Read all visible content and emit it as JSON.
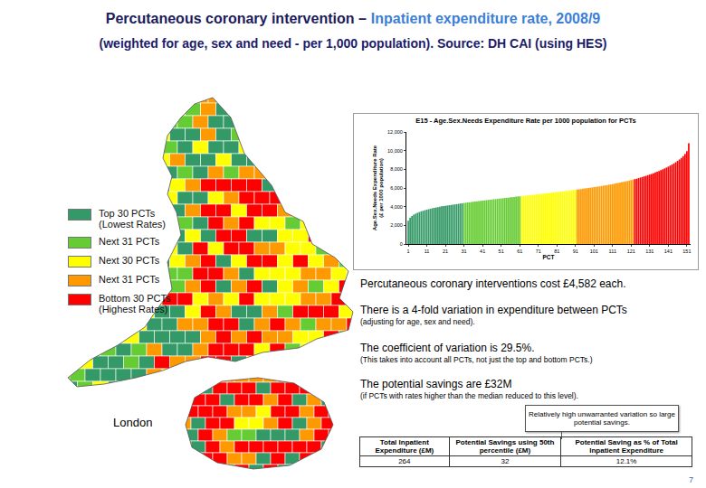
{
  "header": {
    "title": "Percutaneous coronary intervention –",
    "title_highlight": "Inpatient expenditure rate, 2008/9",
    "subtitle": "(weighted for age, sex and need - per 1,000 population). Source: DH CAI (using HES)"
  },
  "map_legend": [
    {
      "lines": [
        "Top 30 PCTs",
        "(Lowest Rates)"
      ],
      "color": "#339966"
    },
    {
      "lines": [
        "Next 31 PCTs"
      ],
      "color": "#66cc33"
    },
    {
      "lines": [
        "Next 30 PCTs"
      ],
      "color": "#ffff00"
    },
    {
      "lines": [
        "Next 31 PCTs"
      ],
      "color": "#ff9900"
    },
    {
      "lines": [
        "Bottom 30 PCTs",
        "(Highest Rates)"
      ],
      "color": "#ff0000"
    }
  ],
  "inset_label": "London",
  "chart_data": {
    "type": "bar",
    "title": "E15 - Age.Sex.Needs Expenditure Rate per 1000 population for PCTs",
    "xlabel": "PCT",
    "ylabel": "Age.Sex.Needs Expenditure Rate (£ per 1000 population)",
    "x": [
      1,
      2,
      3,
      4,
      5,
      6,
      7,
      8,
      9,
      10,
      11,
      12,
      13,
      14,
      15,
      16,
      17,
      18,
      19,
      20,
      21,
      22,
      23,
      24,
      25,
      26,
      27,
      28,
      29,
      30,
      31,
      32,
      33,
      34,
      35,
      36,
      37,
      38,
      39,
      40,
      41,
      42,
      43,
      44,
      45,
      46,
      47,
      48,
      49,
      50,
      51,
      52,
      53,
      54,
      55,
      56,
      57,
      58,
      59,
      60,
      61,
      62,
      63,
      64,
      65,
      66,
      67,
      68,
      69,
      70,
      71,
      72,
      73,
      74,
      75,
      76,
      77,
      78,
      79,
      80,
      81,
      82,
      83,
      84,
      85,
      86,
      87,
      88,
      89,
      90,
      91,
      92,
      93,
      94,
      95,
      96,
      97,
      98,
      99,
      100,
      101,
      102,
      103,
      104,
      105,
      106,
      107,
      108,
      109,
      110,
      111,
      112,
      113,
      114,
      115,
      116,
      117,
      118,
      119,
      120,
      121,
      122,
      123,
      124,
      125,
      126,
      127,
      128,
      129,
      130,
      131,
      132,
      133,
      134,
      135,
      136,
      137,
      138,
      139,
      140,
      141,
      142,
      143,
      144,
      145,
      146,
      147,
      148,
      149,
      150,
      151,
      152
    ],
    "values": [
      2500,
      2800,
      3000,
      3150,
      3250,
      3350,
      3420,
      3500,
      3560,
      3620,
      3680,
      3730,
      3780,
      3830,
      3870,
      3910,
      3950,
      3990,
      4030,
      4060,
      4090,
      4120,
      4150,
      4180,
      4210,
      4240,
      4270,
      4300,
      4330,
      4360,
      4390,
      4420,
      4450,
      4470,
      4500,
      4520,
      4550,
      4570,
      4600,
      4620,
      4650,
      4670,
      4690,
      4720,
      4740,
      4760,
      4790,
      4810,
      4830,
      4860,
      4880,
      4900,
      4930,
      4950,
      4970,
      5000,
      5020,
      5040,
      5070,
      5090,
      5110,
      5130,
      5150,
      5180,
      5200,
      5220,
      5240,
      5270,
      5290,
      5310,
      5330,
      5360,
      5380,
      5400,
      5430,
      5450,
      5470,
      5500,
      5520,
      5540,
      5570,
      5590,
      5610,
      5640,
      5660,
      5690,
      5710,
      5740,
      5760,
      5790,
      5810,
      5840,
      5860,
      5890,
      5920,
      5940,
      5970,
      6000,
      6030,
      6060,
      6090,
      6120,
      6150,
      6180,
      6210,
      6250,
      6280,
      6310,
      6350,
      6380,
      6420,
      6460,
      6500,
      6540,
      6580,
      6620,
      6660,
      6700,
      6750,
      6800,
      6850,
      6900,
      6950,
      7000,
      7060,
      7120,
      7180,
      7240,
      7300,
      7370,
      7440,
      7510,
      7580,
      7660,
      7740,
      7820,
      7910,
      8000,
      8090,
      8190,
      8290,
      8400,
      8510,
      8630,
      8760,
      8900,
      9050,
      9220,
      9410,
      9640,
      9950,
      10800
    ],
    "colors": [
      "#339966",
      "#339966",
      "#339966",
      "#339966",
      "#339966",
      "#339966",
      "#339966",
      "#339966",
      "#339966",
      "#339966",
      "#339966",
      "#339966",
      "#339966",
      "#339966",
      "#339966",
      "#339966",
      "#339966",
      "#339966",
      "#339966",
      "#339966",
      "#339966",
      "#339966",
      "#339966",
      "#339966",
      "#339966",
      "#339966",
      "#339966",
      "#339966",
      "#339966",
      "#339966",
      "#66cc33",
      "#66cc33",
      "#66cc33",
      "#66cc33",
      "#66cc33",
      "#66cc33",
      "#66cc33",
      "#66cc33",
      "#66cc33",
      "#66cc33",
      "#66cc33",
      "#66cc33",
      "#66cc33",
      "#66cc33",
      "#66cc33",
      "#66cc33",
      "#66cc33",
      "#66cc33",
      "#66cc33",
      "#66cc33",
      "#66cc33",
      "#66cc33",
      "#66cc33",
      "#66cc33",
      "#66cc33",
      "#66cc33",
      "#66cc33",
      "#66cc33",
      "#66cc33",
      "#66cc33",
      "#66cc33",
      "#ffff00",
      "#ffff00",
      "#ffff00",
      "#ffff00",
      "#ffff00",
      "#ffff00",
      "#ffff00",
      "#ffff00",
      "#ffff00",
      "#ffff00",
      "#ffff00",
      "#ffff00",
      "#ffff00",
      "#ffff00",
      "#ffff00",
      "#ffff00",
      "#ffff00",
      "#ffff00",
      "#ffff00",
      "#ffff00",
      "#ffff00",
      "#ffff00",
      "#ffff00",
      "#ffff00",
      "#ffff00",
      "#ffff00",
      "#ffff00",
      "#ffff00",
      "#ffff00",
      "#ffff00",
      "#ff9900",
      "#ff9900",
      "#ff9900",
      "#ff9900",
      "#ff9900",
      "#ff9900",
      "#ff9900",
      "#ff9900",
      "#ff9900",
      "#ff9900",
      "#ff9900",
      "#ff9900",
      "#ff9900",
      "#ff9900",
      "#ff9900",
      "#ff9900",
      "#ff9900",
      "#ff9900",
      "#ff9900",
      "#ff9900",
      "#ff9900",
      "#ff9900",
      "#ff9900",
      "#ff9900",
      "#ff9900",
      "#ff9900",
      "#ff9900",
      "#ff9900",
      "#ff9900",
      "#ff9900",
      "#ff9900",
      "#ff0000",
      "#ff0000",
      "#ff0000",
      "#ff0000",
      "#ff0000",
      "#ff0000",
      "#ff0000",
      "#ff0000",
      "#ff0000",
      "#ff0000",
      "#ff0000",
      "#ff0000",
      "#ff0000",
      "#ff0000",
      "#ff0000",
      "#ff0000",
      "#ff0000",
      "#ff0000",
      "#ff0000",
      "#ff0000",
      "#ff0000",
      "#ff0000",
      "#ff0000",
      "#ff0000",
      "#ff0000",
      "#ff0000",
      "#ff0000",
      "#ff0000",
      "#ff0000",
      "#ff0000"
    ],
    "xlim": [
      0,
      153
    ],
    "xticks": [
      1,
      11,
      21,
      31,
      41,
      51,
      61,
      71,
      81,
      91,
      101,
      111,
      121,
      131,
      141,
      151
    ],
    "ylim": [
      0,
      12000
    ],
    "yticks": [
      0,
      {
        "value": 2000,
        "label": "2,000"
      },
      {
        "value": 4000,
        "label": "4,000"
      },
      {
        "value": 6000,
        "label": "6,000"
      },
      {
        "value": 8000,
        "label": "8,000"
      },
      {
        "value": 10000,
        "label": "10,000"
      },
      {
        "value": 12000,
        "label": "12,000"
      }
    ],
    "grid": false
  },
  "notes": [
    {
      "text": "Percutaneous coronary interventions cost £4,582 each."
    },
    {
      "text": "There is a 4-fold variation in expenditure between PCTs",
      "detail": "(adjusting for age, sex and need)."
    },
    {
      "text": "The coefficient of variation is 29.5%.",
      "detail": "(This takes into account all PCTs, not just the top and bottom PCTs.)"
    },
    {
      "text": "The potential savings are £32M",
      "detail": "(if PCTs with rates higher than the median reduced to this level)."
    }
  ],
  "callout": "Relatively high unwarranted variation so large potential savings.",
  "table": {
    "header": [
      "Total Inpatient Expenditure (£M)",
      "Potential Savings using 50th percentile (£M)",
      "Potential Saving as % of Total Inpatient Expenditure"
    ],
    "rows": [
      [
        "264",
        "32",
        "12.1%"
      ]
    ]
  },
  "page_number": "7"
}
